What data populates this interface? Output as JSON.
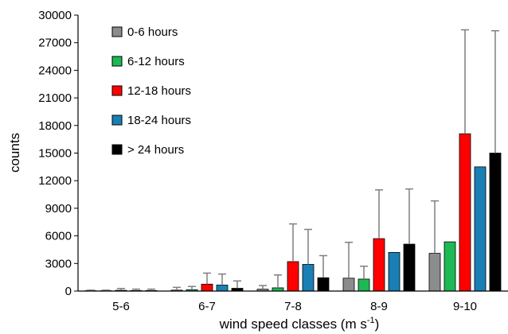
{
  "chart_data": {
    "type": "bar",
    "categories": [
      "5-6",
      "6-7",
      "7-8",
      "8-9",
      "9-10"
    ],
    "xlabel_main": "wind speed classes (m s",
    "xlabel_sup": "-1",
    "xlabel_close": ")",
    "ylabel": "counts",
    "ylim": [
      0,
      30000
    ],
    "yticks": [
      "0",
      "3000",
      "6000",
      "9000",
      "12000",
      "15000",
      "18000",
      "21000",
      "24000",
      "27000",
      "30000"
    ],
    "error_bars": "upper",
    "legend_position": "top-left",
    "series": [
      {
        "name": "0-6 hours",
        "color": "#8c8c8c",
        "values": [
          40,
          100,
          200,
          1400,
          4100
        ],
        "errors": [
          60,
          300,
          400,
          3900,
          5700
        ]
      },
      {
        "name": "6-12 hours",
        "color": "#1db954",
        "values": [
          40,
          150,
          350,
          1300,
          5350
        ],
        "errors": [
          60,
          350,
          1400,
          1400,
          0
        ]
      },
      {
        "name": "12-18 hours",
        "color": "#ff0000",
        "values": [
          80,
          750,
          3200,
          5700,
          17100
        ],
        "errors": [
          200,
          1200,
          4100,
          5300,
          11300
        ]
      },
      {
        "name": "18-24 hours",
        "color": "#1a7fb5",
        "values": [
          60,
          650,
          2900,
          4200,
          13500
        ],
        "errors": [
          150,
          1200,
          3800,
          0,
          0
        ]
      },
      {
        "name": "> 24 hours",
        "color": "#000000",
        "values": [
          60,
          300,
          1450,
          5100,
          15000
        ],
        "errors": [
          150,
          800,
          2400,
          6000,
          13300
        ]
      }
    ]
  }
}
